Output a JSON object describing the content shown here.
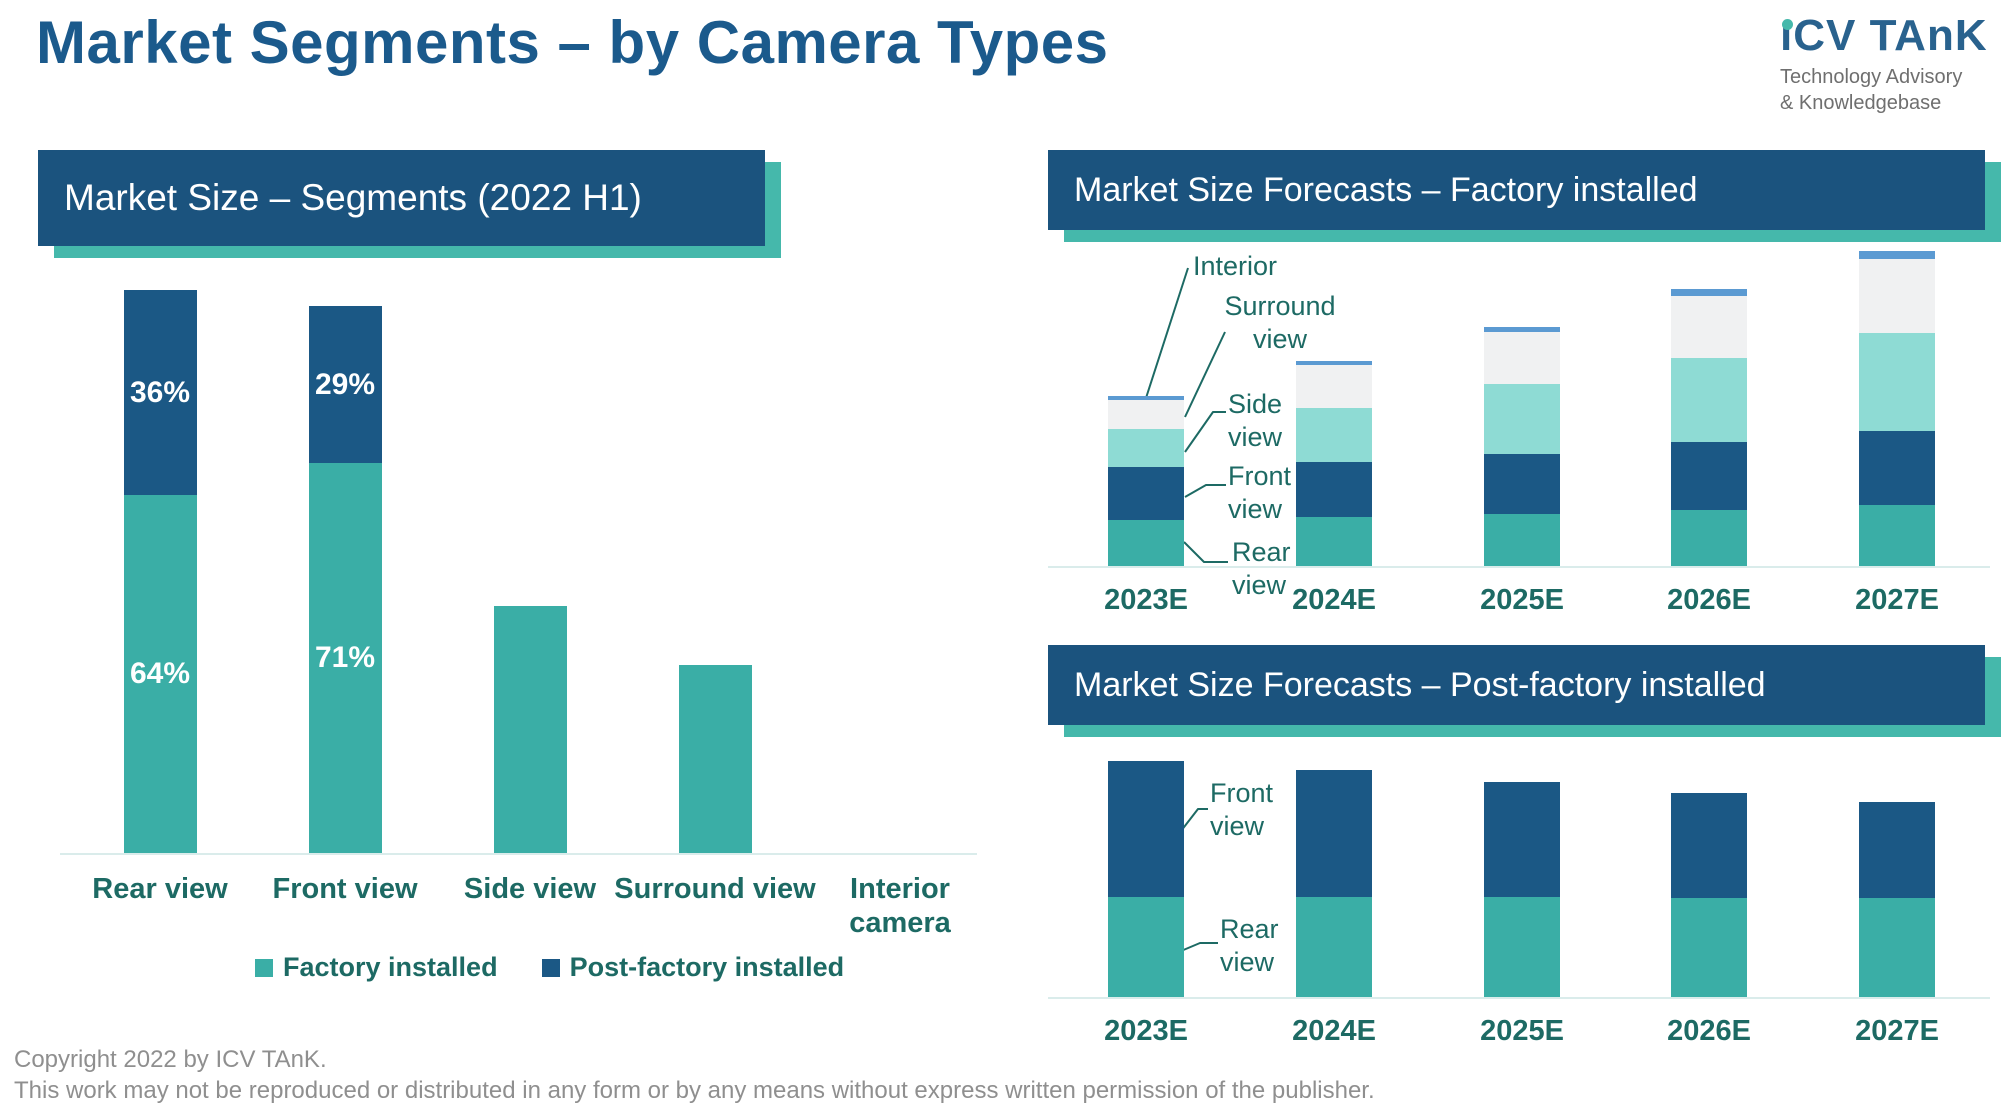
{
  "header": {
    "title": "Market Segments – by Camera Types"
  },
  "logo": {
    "brand": "iCV TAnK",
    "tagline_line1": "Technology Advisory",
    "tagline_line2": "& Knowledgebase"
  },
  "panels": {
    "left": {
      "banner_title": "Market Size – Segments (2022 H1)"
    },
    "top_right": {
      "banner_title": "Market Size Forecasts – Factory installed"
    },
    "bottom_right": {
      "banner_title": "Market Size Forecasts – Post-factory installed"
    }
  },
  "legend": {
    "items": [
      {
        "label": "Factory installed",
        "color": "#3aaea6"
      },
      {
        "label": "Post-factory installed",
        "color": "#1b5885"
      }
    ]
  },
  "footer": {
    "line1": "Copyright  2022 by ICV TAnK.",
    "line2": "This work may not be reproduced or distributed in any form or by any means without express written permission of the publisher."
  },
  "colors": {
    "title_blue": "#1b5a8c",
    "banner_blue": "#1b537e",
    "banner_shadow_teal": "#45b8ab",
    "teal": "#3aaea6",
    "dark_blue": "#1b5885",
    "mint": "#8edbd4",
    "light_gray": "#f0f1f2",
    "cornflower_blue": "#5b9ad2",
    "label_teal": "#1d6a64",
    "axis_line": "#daeceb",
    "footer_gray": "#8f8f8f"
  },
  "chart_data": [
    {
      "id": "market-size-segments-2022h1",
      "type": "bar",
      "stacked": true,
      "title": "Market Size – Segments (2022 H1)",
      "categories": [
        "Rear view",
        "Front view",
        "Side view",
        "Surround view",
        "Interior camera"
      ],
      "series": [
        {
          "name": "Factory installed",
          "color": "#3aaea6",
          "values_relative": [
            358,
            390,
            247,
            188,
            0
          ]
        },
        {
          "name": "Post-factory installed",
          "color": "#1b5885",
          "values_relative": [
            205,
            157,
            0,
            0,
            0
          ]
        }
      ],
      "segment_pct_labels": [
        {
          "category": "Rear view",
          "factory_label": "64%",
          "post_factory_label": "36%"
        },
        {
          "category": "Front view",
          "factory_label": "71%",
          "post_factory_label": "29%"
        }
      ],
      "value_axis": "none shown; values are relative units estimated from bar pixel heights",
      "legend_position": "bottom",
      "grid": false
    },
    {
      "id": "forecast-factory-installed",
      "type": "bar",
      "stacked": true,
      "title": "Market Size Forecasts – Factory installed",
      "categories": [
        "2023E",
        "2024E",
        "2025E",
        "2026E",
        "2027E"
      ],
      "series_order": "bottom to top",
      "series": [
        {
          "name": "Rear view",
          "color": "#3aaea6",
          "values_relative": [
            46,
            49,
            52,
            56,
            61
          ]
        },
        {
          "name": "Front view",
          "color": "#1b5885",
          "values_relative": [
            53,
            55,
            60,
            68,
            74
          ]
        },
        {
          "name": "Side view",
          "color": "#8edbd4",
          "values_relative": [
            38,
            54,
            70,
            84,
            98
          ]
        },
        {
          "name": "Surround view",
          "color": "#f0f1f2",
          "values_relative": [
            29,
            43,
            52,
            62,
            74
          ]
        },
        {
          "name": "Interior",
          "color": "#5b9ad2",
          "values_relative": [
            4,
            4,
            5,
            7,
            8
          ]
        }
      ],
      "value_axis": "none shown; values are relative units estimated from bar pixel heights",
      "labels": "series identified by leader-line labels pointing at first bar",
      "grid": false
    },
    {
      "id": "forecast-post-factory-installed",
      "type": "bar",
      "stacked": true,
      "title": "Market Size Forecasts – Post-factory installed",
      "categories": [
        "2023E",
        "2024E",
        "2025E",
        "2026E",
        "2027E"
      ],
      "series_order": "bottom to top",
      "series": [
        {
          "name": "Rear view",
          "color": "#3aaea6",
          "values_relative": [
            100,
            100,
            100,
            99,
            99
          ]
        },
        {
          "name": "Front view",
          "color": "#1b5885",
          "values_relative": [
            136,
            127,
            115,
            105,
            96
          ]
        }
      ],
      "value_axis": "none shown; values are relative units estimated from bar pixel heights",
      "labels": "series identified by leader-line labels pointing at first bar",
      "grid": false
    }
  ]
}
